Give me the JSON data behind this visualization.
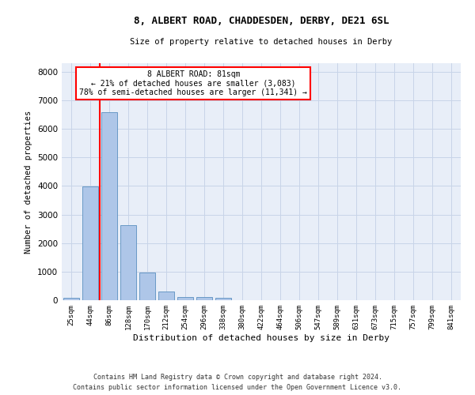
{
  "title": "8, ALBERT ROAD, CHADDESDEN, DERBY, DE21 6SL",
  "subtitle": "Size of property relative to detached houses in Derby",
  "xlabel": "Distribution of detached houses by size in Derby",
  "ylabel": "Number of detached properties",
  "footer1": "Contains HM Land Registry data © Crown copyright and database right 2024.",
  "footer2": "Contains public sector information licensed under the Open Government Licence v3.0.",
  "bin_labels": [
    "25sqm",
    "44sqm",
    "86sqm",
    "128sqm",
    "170sqm",
    "212sqm",
    "254sqm",
    "296sqm",
    "338sqm",
    "380sqm",
    "422sqm",
    "464sqm",
    "506sqm",
    "547sqm",
    "589sqm",
    "631sqm",
    "673sqm",
    "715sqm",
    "757sqm",
    "799sqm",
    "841sqm"
  ],
  "bar_values": [
    70,
    3980,
    6580,
    2620,
    960,
    310,
    120,
    110,
    90,
    0,
    0,
    0,
    0,
    0,
    0,
    0,
    0,
    0,
    0,
    0,
    0
  ],
  "bar_color": "#aec6e8",
  "bar_edge_color": "#5a8fc0",
  "grid_color": "#c8d4e8",
  "background_color": "#e8eef8",
  "property_line_x": 1.5,
  "annotation_text_line1": "8 ALBERT ROAD: 81sqm",
  "annotation_text_line2": "← 21% of detached houses are smaller (3,083)",
  "annotation_text_line3": "78% of semi-detached houses are larger (11,341) →",
  "annotation_box_color": "white",
  "annotation_box_edge_color": "red",
  "property_line_color": "red",
  "ylim": [
    0,
    8300
  ],
  "yticks": [
    0,
    1000,
    2000,
    3000,
    4000,
    5000,
    6000,
    7000,
    8000
  ]
}
